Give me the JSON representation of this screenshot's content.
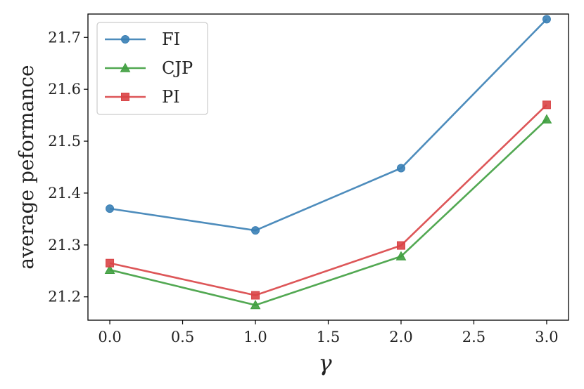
{
  "chart_data": {
    "type": "line",
    "title": "",
    "xlabel": "γ",
    "ylabel": "average  peformance",
    "x": [
      0.0,
      1.0,
      2.0,
      3.0
    ],
    "xlim": [
      -0.15,
      3.15
    ],
    "ylim": [
      21.155,
      21.745
    ],
    "xticks": [
      0.0,
      0.5,
      1.0,
      1.5,
      2.0,
      2.5,
      3.0
    ],
    "xtick_labels": [
      "0.0",
      "0.5",
      "1.0",
      "1.5",
      "2.0",
      "2.5",
      "3.0"
    ],
    "yticks": [
      21.2,
      21.3,
      21.4,
      21.5,
      21.6,
      21.7
    ],
    "ytick_labels": [
      "21.2",
      "21.3",
      "21.4",
      "21.5",
      "21.6",
      "21.7"
    ],
    "legend_position": "top-left",
    "grid": false,
    "series": [
      {
        "name": "FI",
        "color": "#3a7fb5",
        "marker": "circle",
        "values": [
          21.37,
          21.328,
          21.448,
          21.735
        ]
      },
      {
        "name": "CJP",
        "color": "#3f9e3f",
        "marker": "triangle",
        "values": [
          21.252,
          21.184,
          21.278,
          21.542
        ]
      },
      {
        "name": "PI",
        "color": "#d94446",
        "marker": "square",
        "values": [
          21.265,
          21.203,
          21.299,
          21.57
        ]
      }
    ]
  }
}
